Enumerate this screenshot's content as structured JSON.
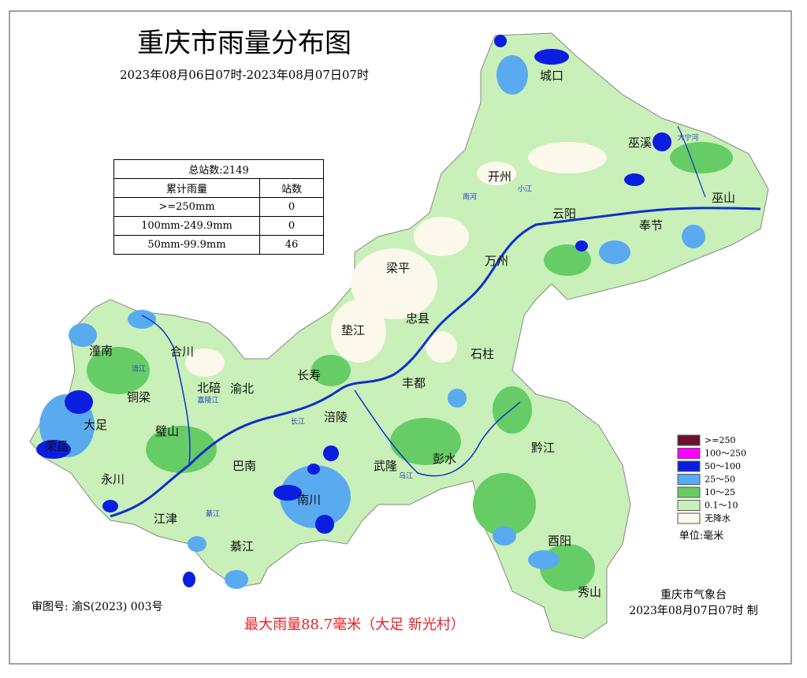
{
  "header": {
    "title": "重庆市雨量分布图",
    "subtitle": "2023年08月06日07时-2023年08月07日07时"
  },
  "table": {
    "total": "总站数:2149",
    "columns": [
      "累计雨量",
      "站数"
    ],
    "rows": [
      [
        ">=250mm",
        0
      ],
      [
        "100mm-249.9mm",
        0
      ],
      [
        "50mm-99.9mm",
        46
      ]
    ]
  },
  "legend": {
    "items": [
      {
        "label": ">=250",
        "color": "#6b1030"
      },
      {
        "label": "100～250",
        "color": "#ff00ff"
      },
      {
        "label": "50～100",
        "color": "#0a1ee0"
      },
      {
        "label": "25～50",
        "color": "#5aaaf0"
      },
      {
        "label": "10～25",
        "color": "#66cc66"
      },
      {
        "label": "0.1～10",
        "color": "#c8f0b8"
      },
      {
        "label": "无降水",
        "color": "#fcf8ec"
      }
    ],
    "unit": "单位:毫米"
  },
  "districts": [
    "城口",
    "巫溪",
    "开州",
    "云阳",
    "巫山",
    "奉节",
    "万州",
    "梁平",
    "忠县",
    "垫江",
    "石柱",
    "长寿",
    "丰都",
    "涪陵",
    "潼南",
    "合川",
    "铜梁",
    "北碚",
    "渝北",
    "大足",
    "璧山",
    "永川",
    "江津",
    "巴南",
    "綦江",
    "南川",
    "武隆",
    "彭水",
    "黔江",
    "酉阳",
    "秀山",
    "荣昌"
  ],
  "rivers": [
    "长江",
    "嘉陵江",
    "乌江",
    "涪江",
    "大宁河",
    "小江",
    "南河",
    "綦江"
  ],
  "footer": {
    "approval": "审图号: 渝S(2023) 003号",
    "max_rain": "最大雨量88.7毫米（大足 新光村）",
    "agency": "重庆市气象台",
    "issued": "2023年08月07日07时 制"
  }
}
